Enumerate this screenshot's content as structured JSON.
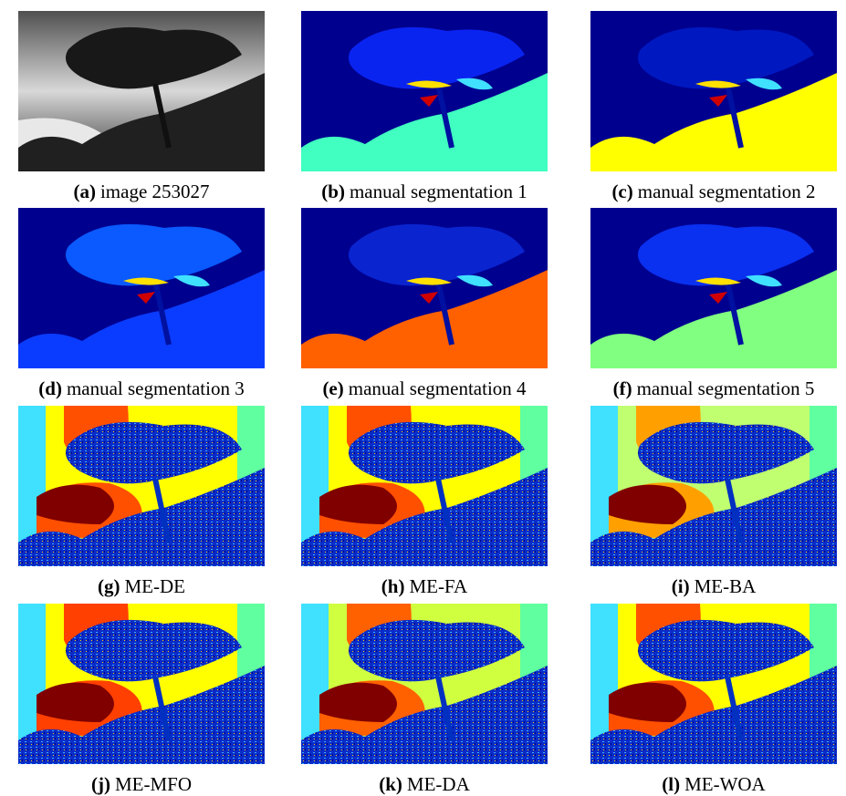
{
  "panels": [
    {
      "label": "(a)",
      "caption": "image 253027"
    },
    {
      "label": "(b)",
      "caption": "manual segmentation 1"
    },
    {
      "label": "(c)",
      "caption": "manual segmentation 2"
    },
    {
      "label": "(d)",
      "caption": "manual segmentation 3"
    },
    {
      "label": "(e)",
      "caption": "manual segmentation 4"
    },
    {
      "label": "(f)",
      "caption": "manual segmentation 5"
    },
    {
      "label": "(g)",
      "caption": "ME-DE"
    },
    {
      "label": "(h)",
      "caption": "ME-FA"
    },
    {
      "label": "(i)",
      "caption": "ME-BA"
    },
    {
      "label": "(j)",
      "caption": "ME-MFO"
    },
    {
      "label": "(k)",
      "caption": "ME-DA"
    },
    {
      "label": "(l)",
      "caption": "ME-WOA"
    }
  ]
}
